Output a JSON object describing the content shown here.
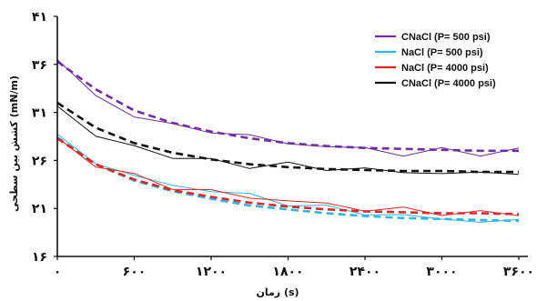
{
  "chart_data": {
    "type": "line",
    "xlabel": "زمان (s)",
    "ylabel": "کشش بین سطحی (mN/m)",
    "xlim": [
      0,
      3600
    ],
    "ylim": [
      16,
      41
    ],
    "x_ticks": [
      0,
      600,
      1200,
      1800,
      2400,
      3000,
      3600
    ],
    "x_tick_labels": [
      "۰",
      "۶۰۰",
      "۱۲۰۰",
      "۱۸۰۰",
      "۲۴۰۰",
      "۳۰۰۰",
      "۳۶۰۰"
    ],
    "y_ticks": [
      16,
      21,
      26,
      31,
      36,
      41
    ],
    "y_tick_labels": [
      "۱۶",
      "۲۱",
      "۲۶",
      "۳۱",
      "۳۶",
      "۴۱"
    ],
    "legend_position": "top-right",
    "series": [
      {
        "name": "CNaCl (P= 500 psi)",
        "color": "#7030a0",
        "x": [
          0,
          300,
          600,
          900,
          1200,
          1500,
          1800,
          2100,
          2400,
          2700,
          3000,
          3300,
          3600
        ],
        "measured": [
          36.5,
          32.6,
          30.8,
          29.5,
          29.2,
          28.4,
          27.9,
          27.4,
          27.2,
          26.7,
          27.0,
          26.8,
          27.0
        ],
        "fit": [
          36.3,
          33.4,
          31.2,
          29.9,
          29.0,
          28.3,
          27.8,
          27.5,
          27.3,
          27.2,
          27.1,
          27.0,
          27.0
        ]
      },
      {
        "name": "NaCl (P= 500 psi)",
        "color": "#2ab7e3",
        "x": [
          0,
          300,
          600,
          900,
          1200,
          1500,
          1800,
          2100,
          2400,
          2700,
          3000,
          3300,
          3600
        ],
        "measured": [
          28.4,
          25.9,
          24.3,
          23.4,
          22.9,
          22.3,
          21.6,
          21.0,
          20.6,
          20.2,
          19.9,
          19.7,
          19.6
        ],
        "fit": [
          28.4,
          25.6,
          23.9,
          22.8,
          22.0,
          21.3,
          20.9,
          20.5,
          20.2,
          20.0,
          19.9,
          19.8,
          19.7
        ]
      },
      {
        "name": "NaCl (P= 4000 psi)",
        "color": "#e02626",
        "x": [
          0,
          300,
          600,
          900,
          1200,
          1500,
          1800,
          2100,
          2400,
          2700,
          3000,
          3300,
          3600
        ],
        "measured": [
          28.2,
          25.6,
          24.3,
          23.3,
          22.7,
          22.2,
          21.8,
          21.4,
          21.0,
          20.8,
          20.6,
          20.5,
          20.4
        ],
        "fit": [
          28.3,
          25.6,
          24.0,
          22.9,
          22.2,
          21.6,
          21.2,
          20.9,
          20.7,
          20.6,
          20.5,
          20.5,
          20.4
        ]
      },
      {
        "name": "CNaCl (P= 4000 psi)",
        "color": "#111111",
        "x": [
          0,
          300,
          600,
          900,
          1200,
          1500,
          1800,
          2100,
          2400,
          2700,
          3000,
          3300,
          3600
        ],
        "measured": [
          31.9,
          28.4,
          27.5,
          26.4,
          25.9,
          25.5,
          25.5,
          25.2,
          25.1,
          24.7,
          24.8,
          24.5,
          24.9
        ],
        "fit": [
          32.0,
          29.4,
          27.8,
          26.8,
          26.1,
          25.6,
          25.3,
          25.1,
          25.0,
          24.9,
          24.9,
          24.8,
          24.8
        ]
      }
    ]
  }
}
